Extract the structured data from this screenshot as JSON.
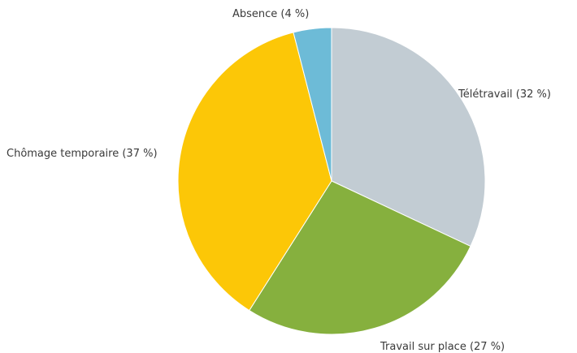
{
  "chart_data": {
    "type": "pie",
    "title": "",
    "slices": [
      {
        "label": "Télétravail (32 %)",
        "value": 32,
        "color": "#c2ccd3"
      },
      {
        "label": "Travail sur place (27 %)",
        "value": 27,
        "color": "#86b03e"
      },
      {
        "label": "Chômage temporaire (37 %)",
        "value": 37,
        "color": "#fcc707"
      },
      {
        "label": "Absence (4 %)",
        "value": 4,
        "color": "#6dbbd7"
      }
    ],
    "start": "12 o'clock",
    "direction": "clockwise",
    "legend": "none (labels beside slices)"
  }
}
